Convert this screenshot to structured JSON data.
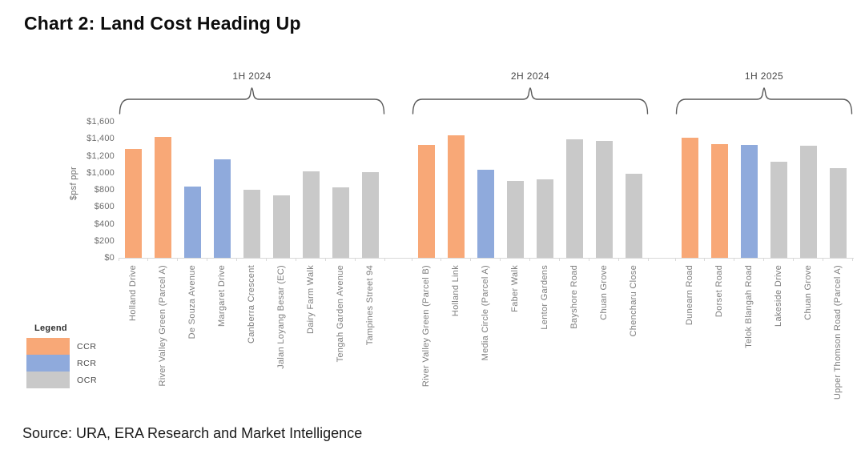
{
  "title": "Chart 2: Land Cost Heading Up",
  "source": "Source: URA, ERA Research and Market Intelligence",
  "legend": {
    "heading": "Legend",
    "items": [
      {
        "label": "CCR",
        "color": "#F8A877"
      },
      {
        "label": "RCR",
        "color": "#8FAADC"
      },
      {
        "label": "OCR",
        "color": "#C9C9C9"
      }
    ]
  },
  "chart_data": {
    "type": "bar",
    "title": "Chart 2: Land Cost Heading Up",
    "xlabel": "",
    "ylabel": "$psf ppr",
    "ylim": [
      0,
      1600
    ],
    "ytick_step": 200,
    "ytick_labels": [
      "$0",
      "$200",
      "$400",
      "$600",
      "$800",
      "$1,000",
      "$1,200",
      "$1,400",
      "$1,600"
    ],
    "grid": false,
    "legend_position": "bottom-left",
    "region_colors": {
      "CCR": "#F8A877",
      "RCR": "#8FAADC",
      "OCR": "#C9C9C9"
    },
    "groups": [
      {
        "period": "1H 2024",
        "bars": [
          {
            "label": "Holland Drive",
            "region": "CCR",
            "value": 1285
          },
          {
            "label": "River Valley Green (Parcel A)",
            "region": "CCR",
            "value": 1420
          },
          {
            "label": "De Souza Avenue",
            "region": "RCR",
            "value": 840
          },
          {
            "label": "Margaret Drive",
            "region": "RCR",
            "value": 1155
          },
          {
            "label": "Canberra Crescent",
            "region": "OCR",
            "value": 805
          },
          {
            "label": "Jalan Loyang Besar (EC)",
            "region": "OCR",
            "value": 730
          },
          {
            "label": "Dairy Farm Walk",
            "region": "OCR",
            "value": 1020
          },
          {
            "label": "Tengah Garden Avenue",
            "region": "OCR",
            "value": 830
          },
          {
            "label": "Tampines Street 94",
            "region": "OCR",
            "value": 1005
          }
        ]
      },
      {
        "period": "2H 2024",
        "bars": [
          {
            "label": "River Valley Green (Parcel B)",
            "region": "CCR",
            "value": 1325
          },
          {
            "label": "Holland Link",
            "region": "CCR",
            "value": 1440
          },
          {
            "label": "Media Circle (Parcel A)",
            "region": "RCR",
            "value": 1040
          },
          {
            "label": "Faber Walk",
            "region": "OCR",
            "value": 900
          },
          {
            "label": "Lentor Gardens",
            "region": "OCR",
            "value": 920
          },
          {
            "label": "Bayshore Road",
            "region": "OCR",
            "value": 1390
          },
          {
            "label": "Chuan Grove",
            "region": "OCR",
            "value": 1375
          },
          {
            "label": "Chencharu Close",
            "region": "OCR",
            "value": 985
          }
        ]
      },
      {
        "period": "1H 2025",
        "bars": [
          {
            "label": "Dunearn Road",
            "region": "CCR",
            "value": 1415
          },
          {
            "label": "Dorset Road",
            "region": "CCR",
            "value": 1335
          },
          {
            "label": "Telok Blangah Road",
            "region": "RCR",
            "value": 1325
          },
          {
            "label": "Lakeside Drive",
            "region": "OCR",
            "value": 1130
          },
          {
            "label": "Chuan Grove",
            "region": "OCR",
            "value": 1320
          },
          {
            "label": "Upper Thomson Road (Parcel A)",
            "region": "OCR",
            "value": 1055
          }
        ]
      }
    ]
  }
}
